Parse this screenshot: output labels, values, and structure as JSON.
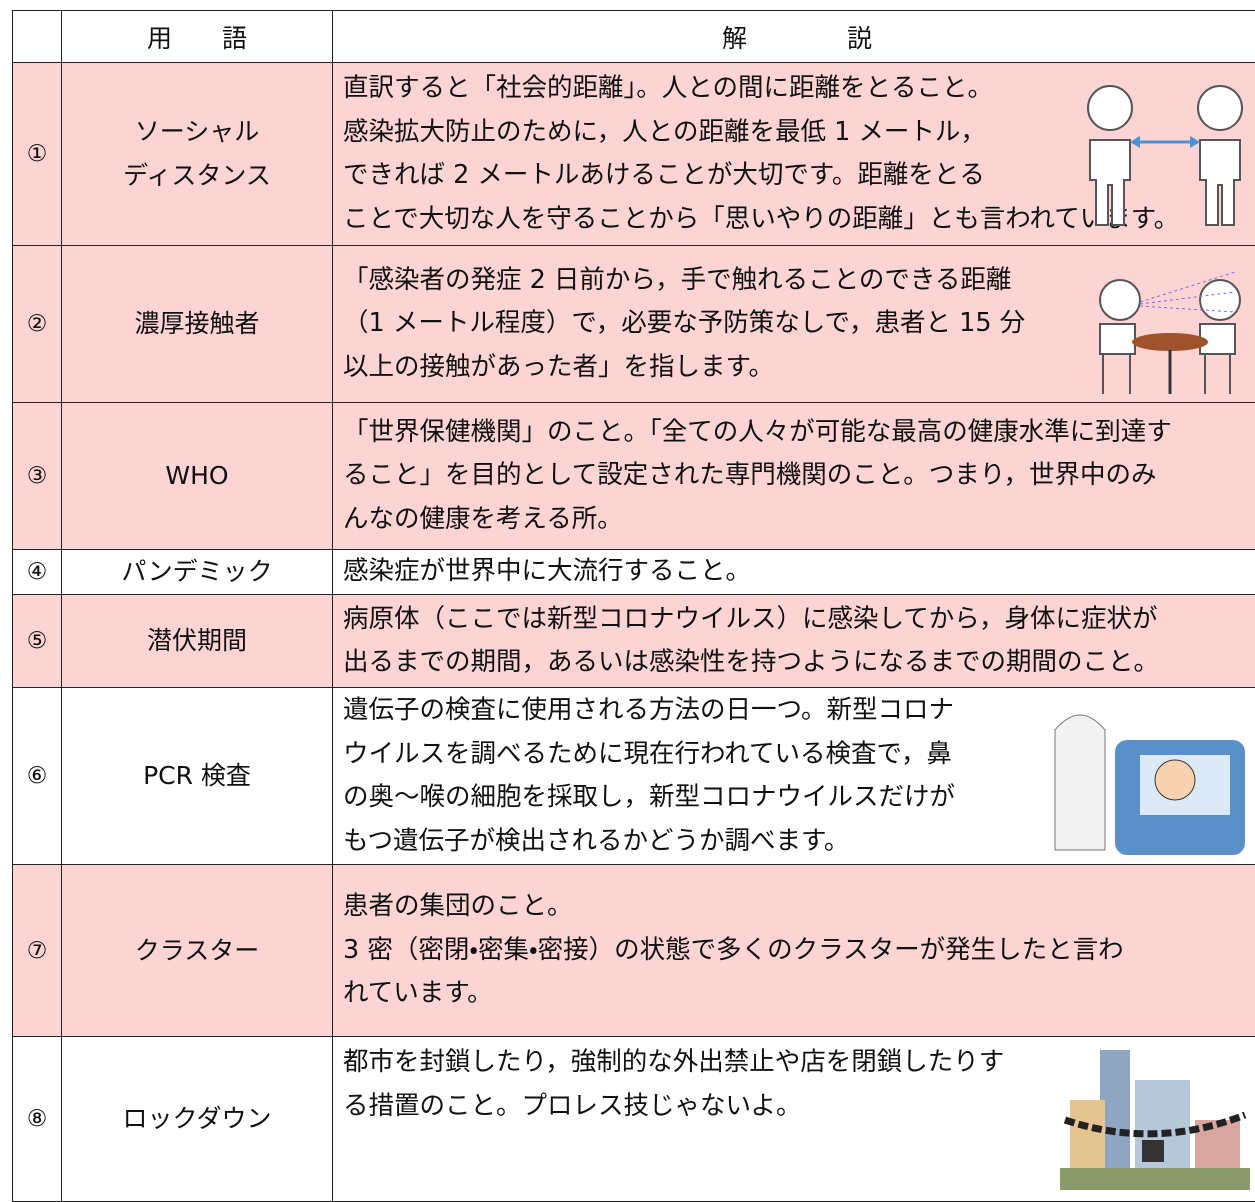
{
  "table": {
    "header": [
      "用　　語",
      "解　　　　説"
    ],
    "rows": [
      {
        "number": "①",
        "term": [
          "ソーシャル",
          "ディスタンス"
        ],
        "description": [
          "直訳すると「社会的距離」。人との間に距離をとること。",
          "感染拡大防止のために，人との距離を最低 1 メートル，",
          "できれば 2 メートルあけることが大切です。距離をとる",
          "ことで大切な人を守ることから「思いやりの距離」とも言われています。"
        ]
      },
      {
        "number": "②",
        "term": [
          "濃厚接触者"
        ],
        "description": [
          "「感染者の発症 2 日前から，手で触れることのできる距離",
          "（1 メートル程度）で，必要な予防策なしで，患者と 15 分",
          "以上の接触があった者」を指します。"
        ]
      },
      {
        "number": "③",
        "term": [
          "WHO"
        ],
        "description": [
          "「世界保健機関」のこと。「全ての人々が可能な最高の健康水準に到達す",
          "ること」を目的として設定された専門機関のこと。つまり，世界中のみ",
          "んなの健康を考える所。"
        ]
      },
      {
        "number": "④",
        "term": [
          "パンデミック"
        ],
        "description": [
          "感染症が世界中に大流行すること。"
        ]
      },
      {
        "number": "⑤",
        "term": [
          "潜伏期間"
        ],
        "description": [
          "病原体（ここでは新型コロナウイルス）に感染してから，身体に症状が",
          "出るまでの期間，あるいは感染性を持つようになるまでの期間のこと。"
        ]
      },
      {
        "number": "⑥",
        "term": [
          "PCR 検査"
        ],
        "description": [
          "遺伝子の検査に使用される方法の日一つ。新型コロナ",
          "ウイルスを調べるために現在行われている検査で，鼻",
          "の奥～喉の細胞を採取し，新型コロナウイルスだけが",
          "もつ遺伝子が検出されるかどうか調べます。"
        ]
      },
      {
        "number": "⑦",
        "term": [
          "クラスター"
        ],
        "description": [
          "患者の集団のこと。",
          "3 密（密閉・密集・密接）の状態で多くのクラスターが発生したと言わ",
          "れています。"
        ]
      },
      {
        "number": "⑧",
        "term": [
          "ロックダウン"
        ],
        "description": [
          "都市を封鎖したり，強制的な外出禁止や店を閉鎖したりす",
          "る措置のこと。プロレス技じゃないよ。"
        ]
      }
    ]
  }
}
